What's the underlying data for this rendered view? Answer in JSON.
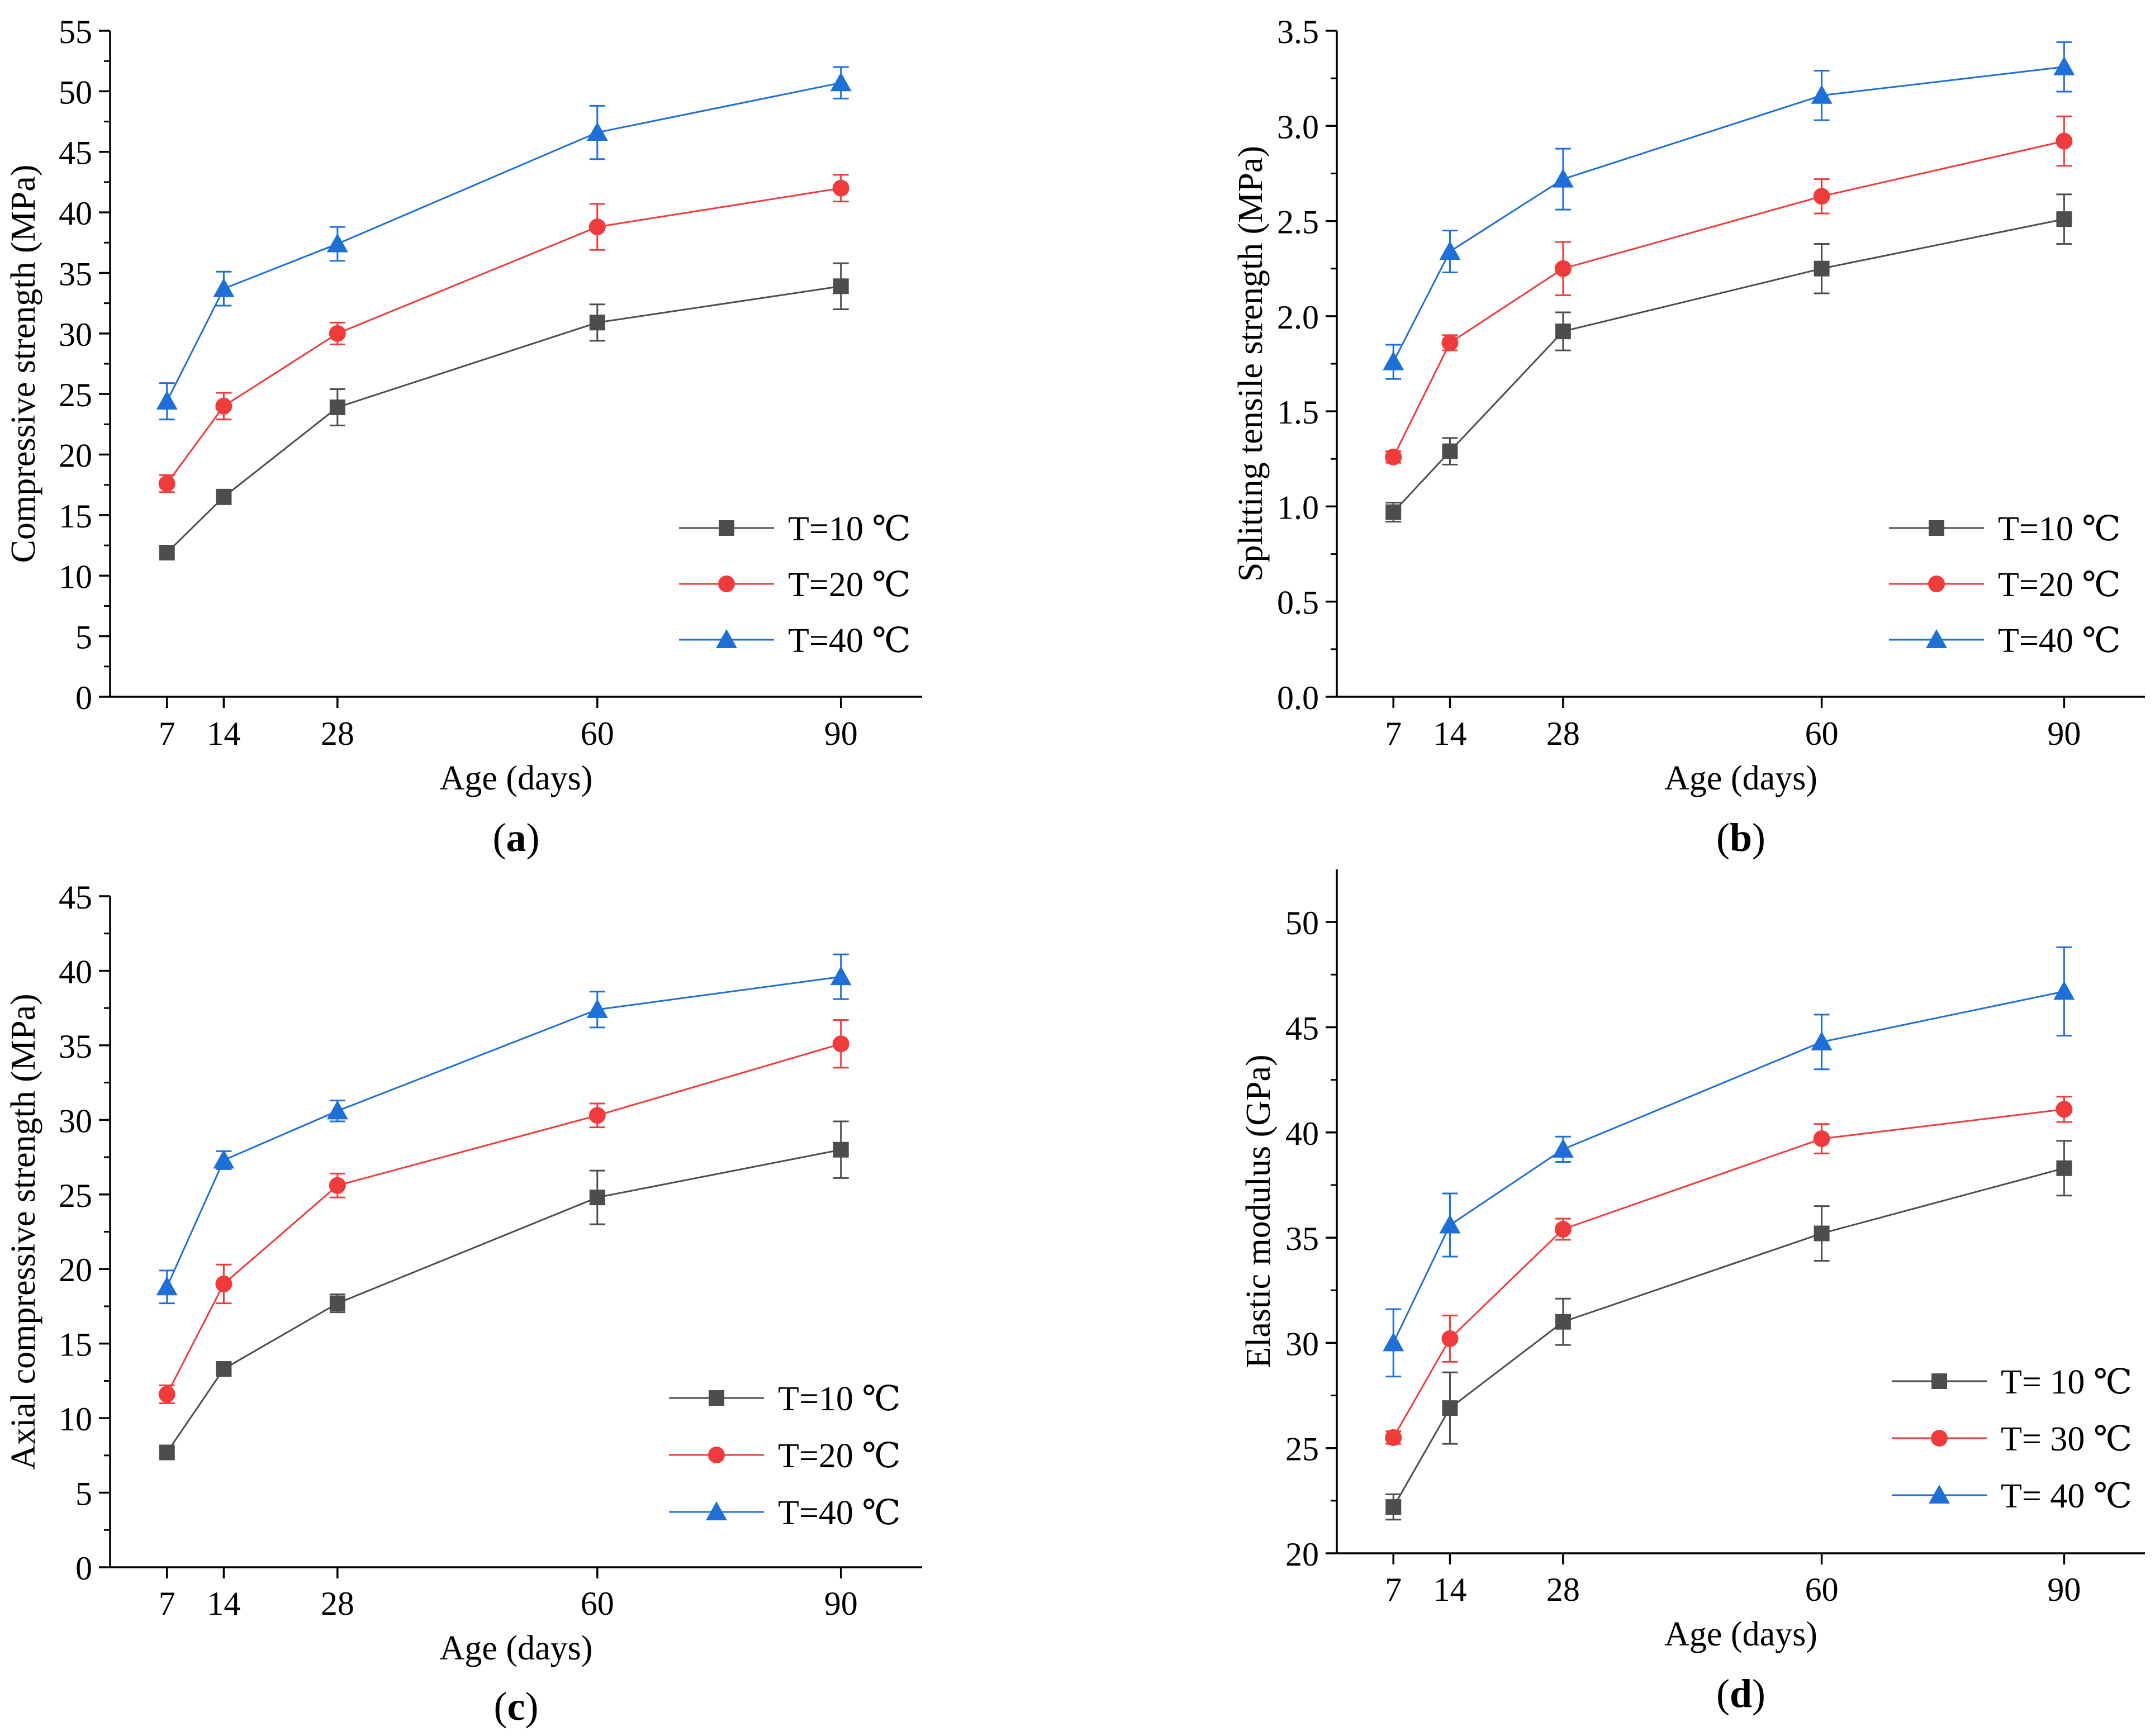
{
  "colors": {
    "s10": "#4d4d4d",
    "s20": "#ef3b3b",
    "s40": "#1f6fd8",
    "axis": "#000000"
  },
  "chart_data": [
    {
      "panel": "(a)",
      "panel_letter": "a",
      "type": "line",
      "xlabel": "Age (days)",
      "ylabel": "Compressive strength (MPa)",
      "x": [
        7,
        14,
        28,
        60,
        90
      ],
      "xticks": [
        "7",
        "14",
        "28",
        "60",
        "90"
      ],
      "ylim": [
        0,
        55
      ],
      "yticks": [
        "0",
        "5",
        "10",
        "15",
        "20",
        "25",
        "30",
        "35",
        "40",
        "45",
        "50",
        "55"
      ],
      "legend_position": "bottom-right",
      "series": [
        {
          "name": "T=10 ℃",
          "marker": "square",
          "color": "#4d4d4d",
          "values": [
            11.9,
            16.5,
            23.9,
            30.9,
            33.9
          ],
          "errors": [
            0.5,
            0.6,
            1.5,
            1.5,
            1.9
          ]
        },
        {
          "name": "T=20 ℃",
          "marker": "circle",
          "color": "#ef3b3b",
          "values": [
            17.6,
            24.0,
            30.0,
            38.8,
            42.0
          ],
          "errors": [
            0.7,
            1.1,
            0.9,
            1.9,
            1.1
          ]
        },
        {
          "name": "T=40 ℃",
          "marker": "triangle",
          "color": "#1f6fd8",
          "values": [
            24.4,
            33.7,
            37.4,
            46.6,
            50.7
          ],
          "errors": [
            1.5,
            1.4,
            1.4,
            2.2,
            1.3
          ]
        }
      ]
    },
    {
      "panel": "(b)",
      "panel_letter": "b",
      "type": "line",
      "xlabel": "Age (days)",
      "ylabel": "Splitting tensile strength (MPa)",
      "x": [
        7,
        14,
        28,
        60,
        90
      ],
      "xticks": [
        "7",
        "14",
        "28",
        "60",
        "90"
      ],
      "ylim": [
        0,
        3.5
      ],
      "yticks": [
        "0.0",
        "0.5",
        "1.0",
        "1.5",
        "2.0",
        "2.5",
        "3.0",
        "3.5"
      ],
      "legend_position": "bottom-right",
      "series": [
        {
          "name": "T=10 ℃",
          "marker": "square",
          "color": "#4d4d4d",
          "values": [
            0.97,
            1.29,
            1.92,
            2.25,
            2.51
          ],
          "errors": [
            0.05,
            0.07,
            0.1,
            0.13,
            0.13
          ]
        },
        {
          "name": "T=20 ℃",
          "marker": "circle",
          "color": "#ef3b3b",
          "values": [
            1.26,
            1.86,
            2.25,
            2.63,
            2.92
          ],
          "errors": [
            0.03,
            0.04,
            0.14,
            0.09,
            0.13
          ]
        },
        {
          "name": "T=40 ℃",
          "marker": "triangle",
          "color": "#1f6fd8",
          "values": [
            1.76,
            2.34,
            2.72,
            3.16,
            3.31
          ],
          "errors": [
            0.09,
            0.11,
            0.16,
            0.13,
            0.13
          ]
        }
      ]
    },
    {
      "panel": "(c)",
      "panel_letter": "c",
      "type": "line",
      "xlabel": "Age (days)",
      "ylabel": "Axial compressive strength (MPa)",
      "x": [
        7,
        14,
        28,
        60,
        90
      ],
      "xticks": [
        "7",
        "14",
        "28",
        "60",
        "90"
      ],
      "ylim": [
        0,
        45
      ],
      "yticks": [
        "0",
        "5",
        "10",
        "15",
        "20",
        "25",
        "30",
        "35",
        "40",
        "45"
      ],
      "legend_position": "bottom-right",
      "series": [
        {
          "name": "T=10 ℃",
          "marker": "square",
          "color": "#4d4d4d",
          "values": [
            7.7,
            13.3,
            17.7,
            24.8,
            28.0
          ],
          "errors": [
            0.3,
            0.4,
            0.6,
            1.8,
            1.9
          ]
        },
        {
          "name": "T=20 ℃",
          "marker": "circle",
          "color": "#ef3b3b",
          "values": [
            11.6,
            19.0,
            25.6,
            30.3,
            35.1
          ],
          "errors": [
            0.6,
            1.3,
            0.8,
            0.8,
            1.6
          ]
        },
        {
          "name": "T=40 ℃",
          "marker": "triangle",
          "color": "#1f6fd8",
          "values": [
            18.8,
            27.3,
            30.6,
            37.4,
            39.6
          ],
          "errors": [
            1.1,
            0.6,
            0.7,
            1.2,
            1.5
          ]
        }
      ]
    },
    {
      "panel": "(d)",
      "panel_letter": "d",
      "type": "line",
      "xlabel": "Age (days)",
      "ylabel": "Elastic modulus (GPa)",
      "x": [
        7,
        14,
        28,
        60,
        90
      ],
      "xticks": [
        "7",
        "14",
        "28",
        "60",
        "90"
      ],
      "ylim": [
        20,
        52.5
      ],
      "yticks": [
        "20",
        "25",
        "30",
        "35",
        "40",
        "45",
        "50"
      ],
      "legend_position": "bottom-right",
      "series": [
        {
          "name": "T= 10 ℃",
          "marker": "square",
          "color": "#4d4d4d",
          "values": [
            22.2,
            26.9,
            31.0,
            35.2,
            38.3
          ],
          "errors": [
            0.6,
            1.7,
            1.1,
            1.3,
            1.3
          ]
        },
        {
          "name": "T= 30 ℃",
          "marker": "circle",
          "color": "#ef3b3b",
          "values": [
            25.5,
            30.2,
            35.4,
            39.7,
            41.1
          ],
          "errors": [
            0.3,
            1.1,
            0.5,
            0.7,
            0.6
          ]
        },
        {
          "name": "T= 40 ℃",
          "marker": "triangle",
          "color": "#1f6fd8",
          "values": [
            30.0,
            35.6,
            39.2,
            44.3,
            46.7
          ],
          "errors": [
            1.6,
            1.5,
            0.6,
            1.3,
            2.1
          ]
        }
      ]
    }
  ]
}
